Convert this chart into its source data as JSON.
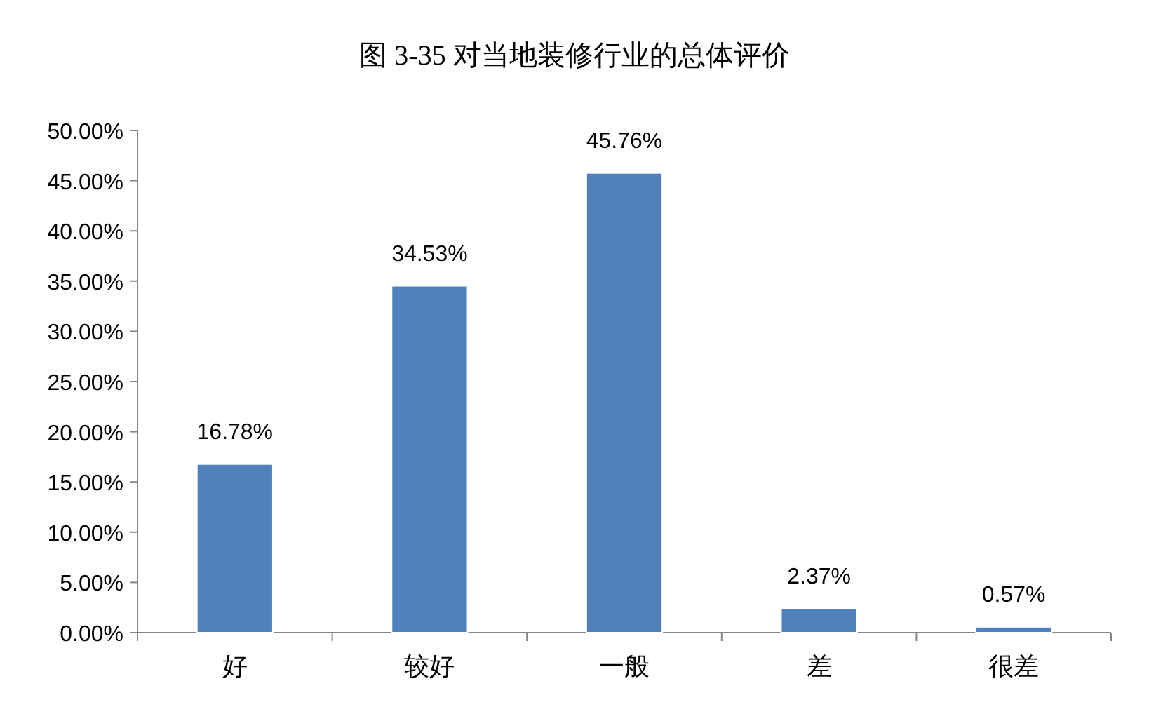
{
  "chart_data": {
    "type": "bar",
    "title": "图 3-35 对当地装修行业的总体评价",
    "categories": [
      "好",
      "较好",
      "一般",
      "差",
      "很差"
    ],
    "values": [
      16.78,
      34.53,
      45.76,
      2.37,
      0.57
    ],
    "value_labels": [
      "16.78%",
      "34.53%",
      "45.76%",
      "2.37%",
      "0.57%"
    ],
    "color": "#4f81bd",
    "ylim": [
      0,
      50
    ],
    "yticks": [
      {
        "value": 0,
        "label": "0.00%"
      },
      {
        "value": 5,
        "label": "5.00%"
      },
      {
        "value": 10,
        "label": "10.00%"
      },
      {
        "value": 15,
        "label": "15.00%"
      },
      {
        "value": 20,
        "label": "20.00%"
      },
      {
        "value": 25,
        "label": "25.00%"
      },
      {
        "value": 30,
        "label": "30.00%"
      },
      {
        "value": 35,
        "label": "35.00%"
      },
      {
        "value": 40,
        "label": "40.00%"
      },
      {
        "value": 45,
        "label": "45.00%"
      },
      {
        "value": 50,
        "label": "50.00%"
      }
    ]
  }
}
